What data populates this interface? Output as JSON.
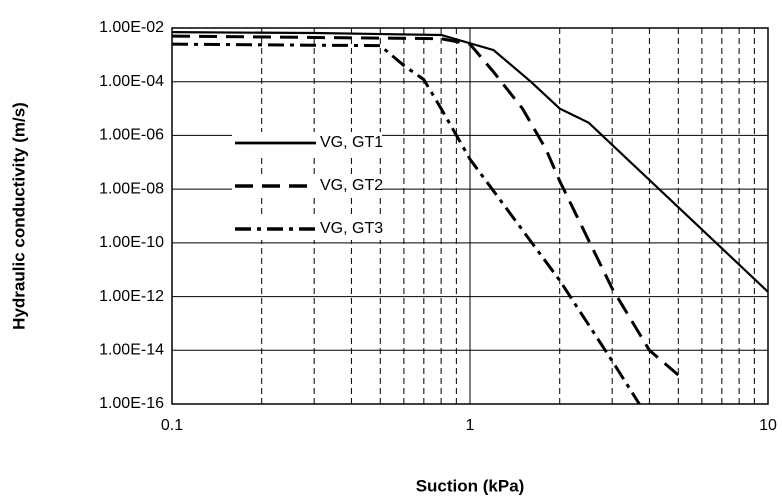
{
  "chart_data": {
    "type": "line",
    "xlabel": "Suction (kPa)",
    "ylabel": "Hydraulic conductivity (m/s)",
    "xscale": "log",
    "yscale": "log",
    "xlim": [
      0.1,
      10
    ],
    "xticks": [
      0.1,
      1,
      10
    ],
    "ylim": [
      1e-16,
      0.01
    ],
    "yticks": [
      {
        "value": 1e-16,
        "label": "1.00E-16"
      },
      {
        "value": 1e-14,
        "label": "1.00E-14"
      },
      {
        "value": 1e-12,
        "label": "1.00E-12"
      },
      {
        "value": 1e-10,
        "label": "1.00E-10"
      },
      {
        "value": 1e-08,
        "label": "1.00E-08"
      },
      {
        "value": 1e-06,
        "label": "1.00E-06"
      },
      {
        "value": 0.0001,
        "label": "1.00E-04"
      },
      {
        "value": 0.01,
        "label": "1.00E-02"
      }
    ],
    "grid": true,
    "minor_xgrid": true,
    "legend_position": "left",
    "series": [
      {
        "name": "VG, GT1",
        "color": "#000000",
        "style": "solid",
        "x": [
          0.1,
          0.3,
          0.8,
          1.2,
          1.6,
          2.0,
          2.5,
          10
        ],
        "values": [
          0.007,
          0.0065,
          0.0055,
          0.0015,
          0.0001,
          1e-05,
          3e-06,
          1.5e-12
        ]
      },
      {
        "name": "VG, GT2",
        "color": "#000000",
        "style": "dashed",
        "x": [
          0.1,
          0.8,
          1.0,
          1.2,
          1.5,
          1.8,
          2.0,
          3.0,
          4.0,
          5.0
        ],
        "values": [
          0.005,
          0.004,
          0.0025,
          0.00023,
          1e-05,
          3e-07,
          2e-08,
          2e-12,
          1e-14,
          1.2e-15
        ]
      },
      {
        "name": "VG, GT3",
        "color": "#000000",
        "style": "dashdot",
        "x": [
          0.1,
          0.5,
          0.6,
          0.7,
          0.8,
          1.0,
          2.0,
          3.0,
          3.7
        ],
        "values": [
          0.0025,
          0.0022,
          0.0004,
          0.00012,
          1e-05,
          1.3e-07,
          4e-12,
          4e-15,
          1e-16
        ]
      }
    ]
  }
}
